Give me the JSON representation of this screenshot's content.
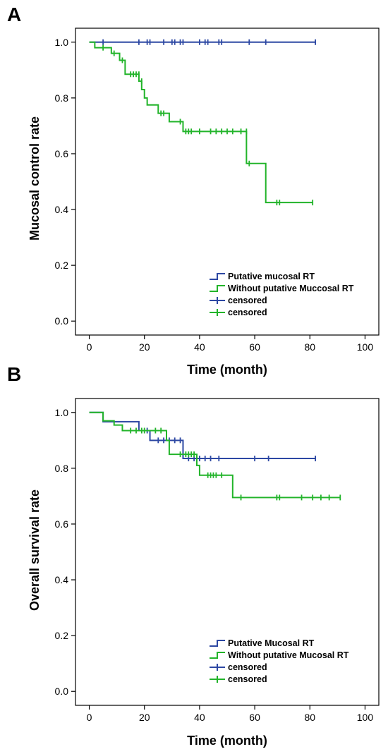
{
  "colors": {
    "blue": "#2d48a3",
    "green": "#22b42a",
    "axis": "#000000"
  },
  "chart_data": [
    {
      "panel": "A",
      "type": "line",
      "step": true,
      "xlabel": "Time (month)",
      "ylabel": "Mucosal control rate",
      "xlim": [
        -5,
        105
      ],
      "ylim": [
        -0.05,
        1.05
      ],
      "xticks": [
        0,
        20,
        40,
        60,
        80,
        100
      ],
      "yticks": [
        0.0,
        0.2,
        0.4,
        0.6,
        0.8,
        1.0
      ],
      "grid": false,
      "legend_position": "bottom-right",
      "legend": [
        "Putative mucosal RT",
        "Without putative Muccosal RT",
        "censored",
        "censored"
      ],
      "series": [
        {
          "color": "blue",
          "steps": [
            [
              0,
              1.0
            ],
            [
              82,
              1.0
            ]
          ],
          "censored": [
            [
              5,
              1.0
            ],
            [
              18,
              1.0
            ],
            [
              21,
              1.0
            ],
            [
              22,
              1.0
            ],
            [
              27,
              1.0
            ],
            [
              30,
              1.0
            ],
            [
              31,
              1.0
            ],
            [
              33,
              1.0
            ],
            [
              34,
              1.0
            ],
            [
              40,
              1.0
            ],
            [
              42,
              1.0
            ],
            [
              43,
              1.0
            ],
            [
              47,
              1.0
            ],
            [
              48,
              1.0
            ],
            [
              58,
              1.0
            ],
            [
              64,
              1.0
            ],
            [
              82,
              1.0
            ]
          ]
        },
        {
          "color": "green",
          "steps": [
            [
              0,
              1.0
            ],
            [
              2,
              0.98
            ],
            [
              8,
              0.96
            ],
            [
              11,
              0.935
            ],
            [
              13,
              0.885
            ],
            [
              18,
              0.86
            ],
            [
              19,
              0.83
            ],
            [
              20,
              0.8
            ],
            [
              21,
              0.775
            ],
            [
              25,
              0.745
            ],
            [
              29,
              0.715
            ],
            [
              34,
              0.68
            ],
            [
              57,
              0.565
            ],
            [
              64,
              0.425
            ],
            [
              81,
              0.425
            ]
          ],
          "censored": [
            [
              5,
              0.98
            ],
            [
              9,
              0.96
            ],
            [
              12,
              0.935
            ],
            [
              15,
              0.885
            ],
            [
              16,
              0.885
            ],
            [
              17,
              0.885
            ],
            [
              18,
              0.885
            ],
            [
              19,
              0.86
            ],
            [
              26,
              0.745
            ],
            [
              27,
              0.745
            ],
            [
              33,
              0.715
            ],
            [
              35,
              0.68
            ],
            [
              36,
              0.68
            ],
            [
              37,
              0.68
            ],
            [
              40,
              0.68
            ],
            [
              44,
              0.68
            ],
            [
              46,
              0.68
            ],
            [
              48,
              0.68
            ],
            [
              50,
              0.68
            ],
            [
              52,
              0.68
            ],
            [
              55,
              0.68
            ],
            [
              57,
              0.68
            ],
            [
              58,
              0.565
            ],
            [
              68,
              0.425
            ],
            [
              69,
              0.425
            ],
            [
              81,
              0.425
            ]
          ]
        }
      ]
    },
    {
      "panel": "B",
      "type": "line",
      "step": true,
      "xlabel": "Time (month)",
      "ylabel": "Overall survival rate",
      "xlim": [
        -5,
        105
      ],
      "ylim": [
        -0.05,
        1.05
      ],
      "xticks": [
        0,
        20,
        40,
        60,
        80,
        100
      ],
      "yticks": [
        0.0,
        0.2,
        0.4,
        0.6,
        0.8,
        1.0
      ],
      "grid": false,
      "legend_position": "bottom-right",
      "legend": [
        "Putative Mucosal RT",
        "Without putative Mucosal RT",
        "censored",
        "censored"
      ],
      "series": [
        {
          "color": "blue",
          "steps": [
            [
              0,
              1.0
            ],
            [
              5,
              0.967
            ],
            [
              18,
              0.935
            ],
            [
              22,
              0.9
            ],
            [
              34,
              0.835
            ],
            [
              82,
              0.835
            ]
          ],
          "censored": [
            [
              21,
              0.935
            ],
            [
              25,
              0.9
            ],
            [
              27,
              0.9
            ],
            [
              29,
              0.9
            ],
            [
              31,
              0.9
            ],
            [
              33,
              0.9
            ],
            [
              36,
              0.835
            ],
            [
              38,
              0.835
            ],
            [
              40,
              0.835
            ],
            [
              42,
              0.835
            ],
            [
              44,
              0.835
            ],
            [
              47,
              0.835
            ],
            [
              60,
              0.835
            ],
            [
              65,
              0.835
            ],
            [
              82,
              0.835
            ]
          ]
        },
        {
          "color": "green",
          "steps": [
            [
              0,
              1.0
            ],
            [
              5,
              0.97
            ],
            [
              9,
              0.955
            ],
            [
              12,
              0.935
            ],
            [
              28,
              0.9
            ],
            [
              29,
              0.85
            ],
            [
              39,
              0.81
            ],
            [
              40,
              0.775
            ],
            [
              52,
              0.695
            ],
            [
              91,
              0.695
            ]
          ],
          "censored": [
            [
              15,
              0.935
            ],
            [
              17,
              0.935
            ],
            [
              19,
              0.935
            ],
            [
              20,
              0.935
            ],
            [
              24,
              0.935
            ],
            [
              26,
              0.935
            ],
            [
              33,
              0.85
            ],
            [
              35,
              0.85
            ],
            [
              36,
              0.85
            ],
            [
              37,
              0.85
            ],
            [
              38,
              0.85
            ],
            [
              43,
              0.775
            ],
            [
              44,
              0.775
            ],
            [
              45,
              0.775
            ],
            [
              46,
              0.775
            ],
            [
              48,
              0.775
            ],
            [
              55,
              0.695
            ],
            [
              68,
              0.695
            ],
            [
              69,
              0.695
            ],
            [
              77,
              0.695
            ],
            [
              81,
              0.695
            ],
            [
              84,
              0.695
            ],
            [
              87,
              0.695
            ],
            [
              91,
              0.695
            ]
          ]
        }
      ]
    }
  ]
}
